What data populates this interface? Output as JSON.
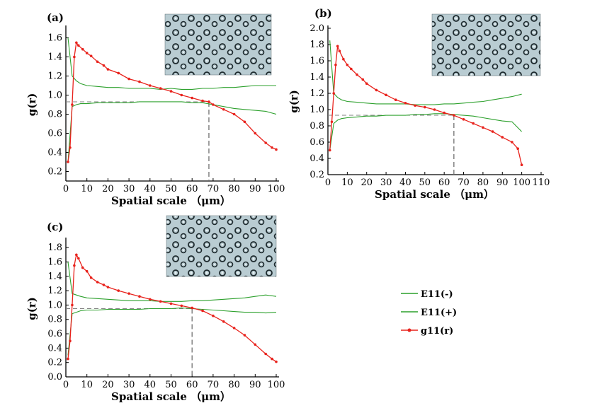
{
  "figure": {
    "legend": [
      {
        "label": "E11(-)",
        "color": "#2ca02c",
        "marker": "none"
      },
      {
        "label": "E11(+)",
        "color": "#2ca02c",
        "marker": "none"
      },
      {
        "label": "g11(r)",
        "color": "#e8221c",
        "marker": "dot"
      }
    ],
    "inset_description": "micrograph-inset"
  },
  "chart_data": [
    {
      "type": "line",
      "panel_label": "(a)",
      "xlabel": "Spatial scale （μm）",
      "ylabel": "g(r)",
      "xlim": [
        0,
        100
      ],
      "ylim": [
        0.1,
        1.7
      ],
      "xticks": [
        0,
        10,
        20,
        30,
        40,
        50,
        60,
        70,
        80,
        90,
        100
      ],
      "yticks": [
        0.2,
        0.4,
        0.6,
        0.8,
        1.0,
        1.2,
        1.4,
        1.6
      ],
      "threshold_x": 68,
      "threshold_y": 0.93,
      "series": [
        {
          "name": "E11(-)",
          "x": [
            1,
            3,
            5,
            7,
            10,
            15,
            20,
            25,
            30,
            35,
            40,
            45,
            50,
            55,
            60,
            65,
            70,
            75,
            80,
            85,
            90,
            95,
            100
          ],
          "values": [
            1.6,
            1.2,
            1.15,
            1.12,
            1.1,
            1.09,
            1.08,
            1.08,
            1.07,
            1.07,
            1.07,
            1.06,
            1.07,
            1.06,
            1.06,
            1.07,
            1.07,
            1.08,
            1.08,
            1.09,
            1.1,
            1.1,
            1.1
          ]
        },
        {
          "name": "E11(+)",
          "x": [
            1,
            3,
            5,
            7,
            10,
            15,
            20,
            25,
            30,
            35,
            40,
            45,
            50,
            55,
            60,
            65,
            70,
            75,
            80,
            85,
            90,
            95,
            100
          ],
          "values": [
            0.3,
            0.88,
            0.9,
            0.91,
            0.91,
            0.92,
            0.92,
            0.92,
            0.92,
            0.93,
            0.93,
            0.93,
            0.93,
            0.93,
            0.92,
            0.92,
            0.9,
            0.88,
            0.86,
            0.85,
            0.84,
            0.83,
            0.8
          ]
        },
        {
          "name": "g11(r)",
          "x": [
            1,
            2,
            3,
            4,
            5,
            6,
            8,
            10,
            12,
            15,
            18,
            20,
            25,
            30,
            35,
            40,
            45,
            50,
            55,
            60,
            65,
            68,
            70,
            75,
            80,
            85,
            90,
            95,
            98,
            100
          ],
          "values": [
            0.3,
            0.45,
            0.9,
            1.4,
            1.55,
            1.52,
            1.48,
            1.44,
            1.41,
            1.35,
            1.31,
            1.27,
            1.23,
            1.17,
            1.14,
            1.1,
            1.07,
            1.04,
            1.0,
            0.97,
            0.94,
            0.93,
            0.9,
            0.85,
            0.8,
            0.72,
            0.6,
            0.5,
            0.45,
            0.43
          ]
        }
      ]
    },
    {
      "type": "line",
      "panel_label": "(b)",
      "xlabel": "Spatial scale （μm）",
      "ylabel": "g(r)",
      "xlim": [
        0,
        110
      ],
      "ylim": [
        0.2,
        2.0
      ],
      "xticks": [
        0,
        10,
        20,
        30,
        40,
        50,
        60,
        70,
        80,
        90,
        100,
        110
      ],
      "yticks": [
        0.2,
        0.4,
        0.6,
        0.8,
        1.0,
        1.2,
        1.4,
        1.6,
        1.8,
        2.0
      ],
      "threshold_x": 65,
      "threshold_y": 0.93,
      "series": [
        {
          "name": "E11(-)",
          "x": [
            1,
            3,
            5,
            7,
            10,
            15,
            20,
            25,
            30,
            35,
            40,
            45,
            50,
            55,
            60,
            65,
            70,
            75,
            80,
            85,
            90,
            95,
            100
          ],
          "values": [
            1.85,
            1.2,
            1.15,
            1.12,
            1.1,
            1.09,
            1.08,
            1.07,
            1.07,
            1.07,
            1.07,
            1.06,
            1.06,
            1.06,
            1.07,
            1.07,
            1.08,
            1.09,
            1.1,
            1.12,
            1.14,
            1.16,
            1.19
          ]
        },
        {
          "name": "E11(+)",
          "x": [
            1,
            3,
            5,
            7,
            10,
            15,
            20,
            25,
            30,
            35,
            40,
            45,
            50,
            55,
            60,
            65,
            70,
            75,
            80,
            85,
            90,
            95,
            100
          ],
          "values": [
            0.5,
            0.83,
            0.87,
            0.89,
            0.9,
            0.91,
            0.92,
            0.92,
            0.93,
            0.93,
            0.93,
            0.94,
            0.94,
            0.95,
            0.95,
            0.94,
            0.93,
            0.92,
            0.9,
            0.88,
            0.86,
            0.85,
            0.73
          ]
        },
        {
          "name": "g11(r)",
          "x": [
            1,
            2,
            3,
            4,
            5,
            6,
            8,
            10,
            12,
            15,
            18,
            20,
            25,
            30,
            35,
            40,
            45,
            50,
            55,
            60,
            65,
            70,
            75,
            80,
            85,
            90,
            95,
            98,
            100
          ],
          "values": [
            0.5,
            0.85,
            1.2,
            1.55,
            1.78,
            1.72,
            1.62,
            1.55,
            1.5,
            1.43,
            1.37,
            1.32,
            1.24,
            1.18,
            1.12,
            1.08,
            1.05,
            1.03,
            1.0,
            0.96,
            0.93,
            0.88,
            0.83,
            0.78,
            0.73,
            0.66,
            0.6,
            0.52,
            0.32
          ]
        }
      ]
    },
    {
      "type": "line",
      "panel_label": "(c)",
      "xlabel": "Spatial scale （μm）",
      "ylabel": "g(r)",
      "xlim": [
        0,
        100
      ],
      "ylim": [
        0.0,
        1.9
      ],
      "xticks": [
        0,
        10,
        20,
        30,
        40,
        50,
        60,
        70,
        80,
        90,
        100
      ],
      "yticks": [
        0.0,
        0.2,
        0.4,
        0.6,
        0.8,
        1.0,
        1.2,
        1.4,
        1.6,
        1.8
      ],
      "threshold_x": 60,
      "threshold_y": 0.95,
      "series": [
        {
          "name": "E11(-)",
          "x": [
            1,
            3,
            5,
            7,
            10,
            15,
            20,
            25,
            30,
            35,
            40,
            45,
            50,
            55,
            60,
            65,
            70,
            75,
            80,
            85,
            90,
            95,
            100
          ],
          "values": [
            1.6,
            1.16,
            1.14,
            1.12,
            1.1,
            1.09,
            1.08,
            1.07,
            1.06,
            1.06,
            1.06,
            1.05,
            1.05,
            1.05,
            1.06,
            1.06,
            1.07,
            1.08,
            1.09,
            1.1,
            1.12,
            1.14,
            1.12
          ]
        },
        {
          "name": "E11(+)",
          "x": [
            1,
            3,
            5,
            7,
            10,
            15,
            20,
            25,
            30,
            35,
            40,
            45,
            50,
            55,
            60,
            65,
            70,
            75,
            80,
            85,
            90,
            95,
            100
          ],
          "values": [
            0.3,
            0.88,
            0.9,
            0.92,
            0.93,
            0.93,
            0.94,
            0.94,
            0.94,
            0.94,
            0.95,
            0.95,
            0.95,
            0.96,
            0.95,
            0.94,
            0.93,
            0.92,
            0.91,
            0.9,
            0.9,
            0.89,
            0.9
          ]
        },
        {
          "name": "g11(r)",
          "x": [
            1,
            2,
            3,
            4,
            5,
            6,
            8,
            10,
            12,
            15,
            18,
            20,
            25,
            30,
            35,
            40,
            45,
            50,
            55,
            60,
            65,
            70,
            75,
            80,
            85,
            90,
            95,
            98,
            100
          ],
          "values": [
            0.25,
            0.5,
            1.0,
            1.55,
            1.7,
            1.65,
            1.52,
            1.47,
            1.38,
            1.32,
            1.28,
            1.25,
            1.2,
            1.16,
            1.12,
            1.08,
            1.05,
            1.02,
            0.99,
            0.96,
            0.92,
            0.85,
            0.77,
            0.68,
            0.58,
            0.45,
            0.32,
            0.25,
            0.21
          ]
        }
      ]
    }
  ]
}
